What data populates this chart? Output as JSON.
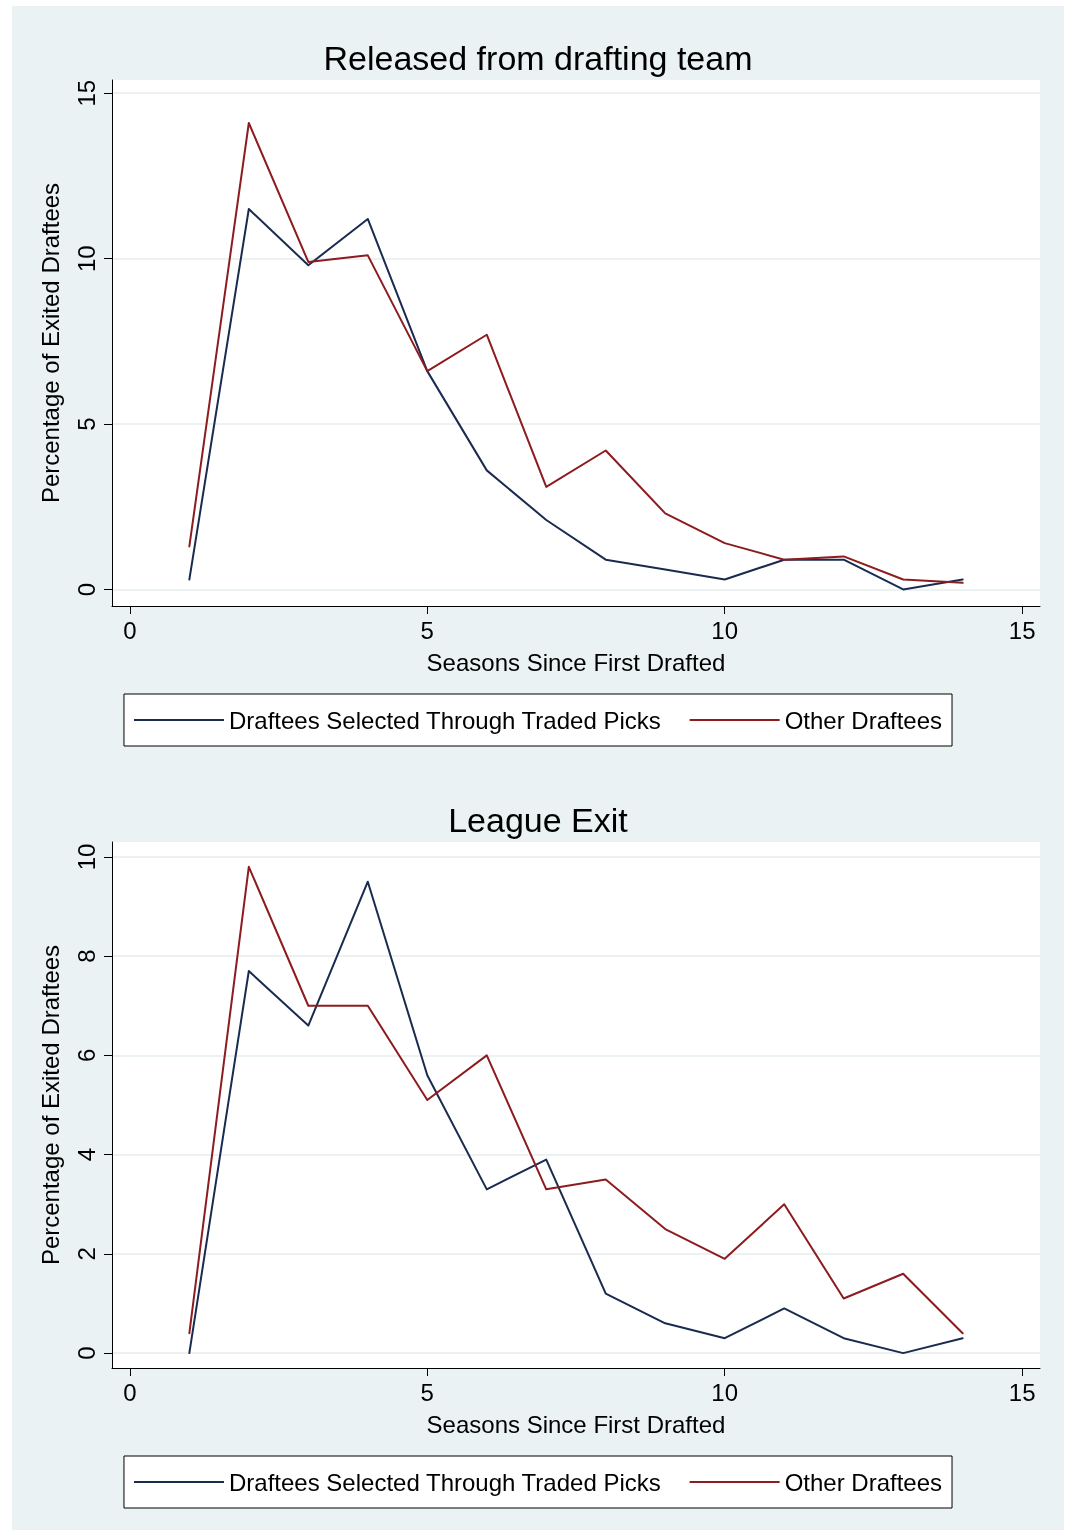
{
  "chart_data": [
    {
      "type": "line",
      "title": "Released from drafting team",
      "xlabel": "Seasons Since First Drafted",
      "ylabel": "Percentage of Exited Draftees",
      "x": [
        1,
        2,
        3,
        4,
        5,
        6,
        7,
        8,
        9,
        10,
        11,
        12,
        13,
        14
      ],
      "series": [
        {
          "name": "Draftees Selected Through Traded Picks",
          "color": "#1a2b50",
          "values": [
            0.3,
            11.5,
            9.8,
            11.2,
            6.6,
            3.6,
            2.1,
            0.9,
            0.6,
            0.3,
            0.9,
            0.9,
            0,
            0.3
          ]
        },
        {
          "name": "Other Draftees",
          "color": "#8c1c1f",
          "values": [
            1.3,
            14.1,
            9.9,
            10.1,
            6.6,
            7.7,
            3.1,
            4.2,
            2.3,
            1.4,
            0.9,
            1.0,
            0.3,
            0.2
          ]
        }
      ],
      "xlim": [
        -0.3,
        15.3
      ],
      "xticks": [
        0,
        5,
        10,
        15
      ],
      "ylim": [
        -0.5,
        15.4
      ],
      "yticks": [
        0,
        5,
        10,
        15
      ],
      "grid": "y",
      "legend": "bottom",
      "marker": "none",
      "line_style": "solid"
    },
    {
      "type": "line",
      "title": "League Exit",
      "xlabel": "Seasons Since First Drafted",
      "ylabel": "Percentage of Exited Draftees",
      "x": [
        1,
        2,
        3,
        4,
        5,
        6,
        7,
        8,
        9,
        10,
        11,
        12,
        13,
        14
      ],
      "series": [
        {
          "name": "Draftees Selected Through Traded Picks",
          "color": "#1a2b50",
          "values": [
            0,
            7.7,
            6.6,
            9.5,
            5.6,
            3.3,
            3.9,
            1.2,
            0.6,
            0.3,
            0.9,
            0.3,
            0,
            0.3
          ]
        },
        {
          "name": "Other Draftees",
          "color": "#8c1c1f",
          "values": [
            0.4,
            9.8,
            7.0,
            7.0,
            5.1,
            6.0,
            3.3,
            3.5,
            2.5,
            1.9,
            3.0,
            1.1,
            1.6,
            0.4
          ]
        }
      ],
      "xlim": [
        -0.3,
        15.3
      ],
      "xticks": [
        0,
        5,
        10,
        15
      ],
      "ylim": [
        -0.3,
        10.3
      ],
      "yticks": [
        0,
        2,
        4,
        6,
        8,
        10
      ],
      "grid": "y",
      "legend": "bottom",
      "marker": "none",
      "line_style": "solid"
    }
  ]
}
